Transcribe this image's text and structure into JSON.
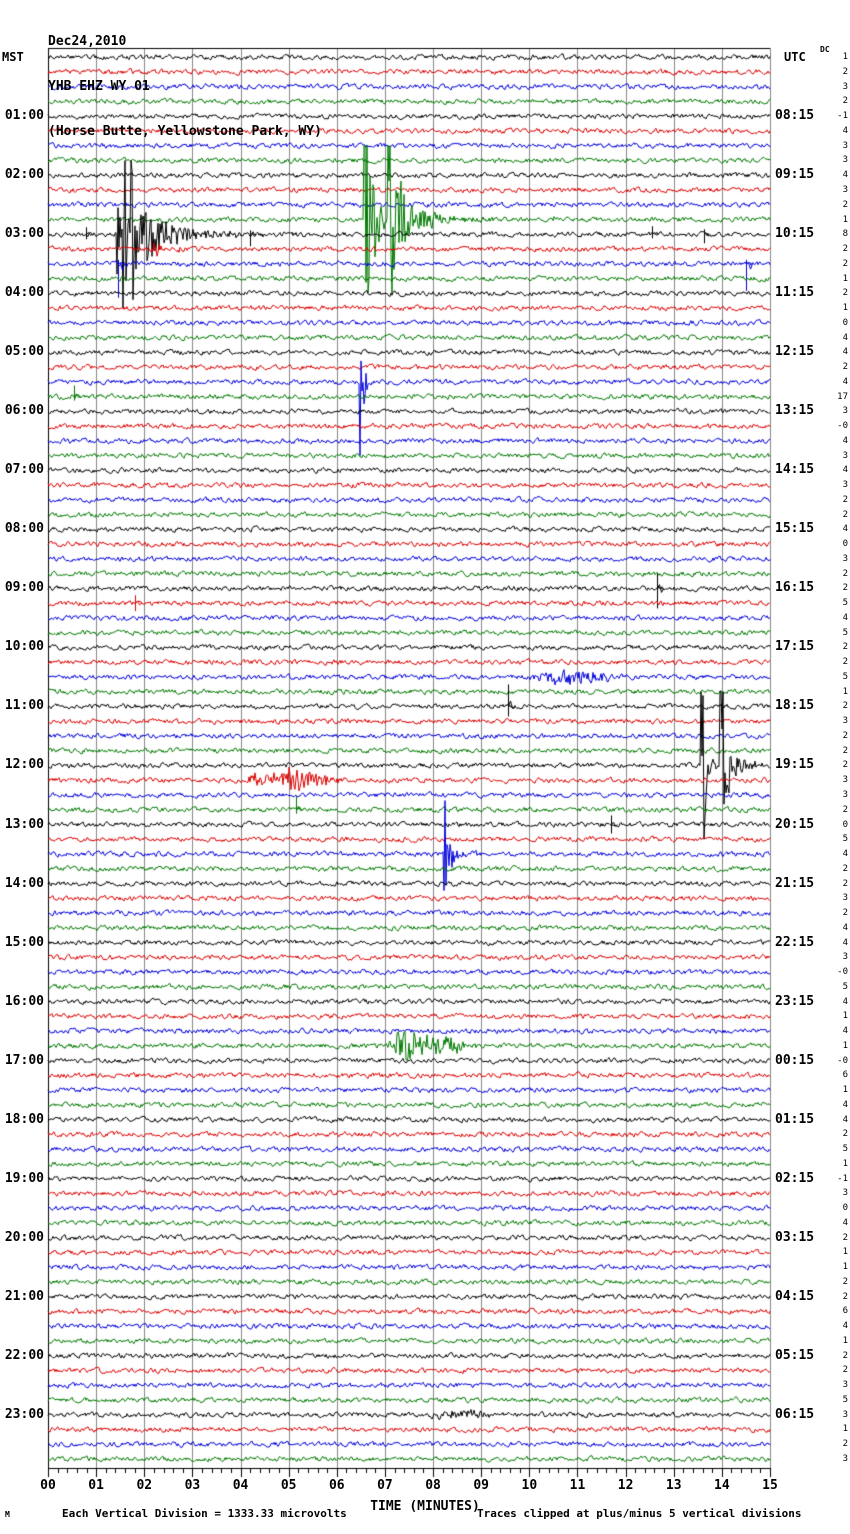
{
  "header": {
    "date": "Dec24,2010",
    "station": "YHB EHZ WY 01",
    "location": "(Horse Butte, Yellowstone Park, WY)"
  },
  "corners": {
    "left_tz": "MST",
    "right_tz": "UTC",
    "dc_label": "DC"
  },
  "footer": {
    "xlabel": "TIME (MINUTES)",
    "scale_note": "Each Vertical Division = 1333.33 microvolts",
    "clip_note": "Traces clipped at plus/minus 5 vertical divisions",
    "watermark": "M"
  },
  "colors": {
    "black": "#000000",
    "red": "#dd0000",
    "blue": "#0000dd",
    "green": "#007a00",
    "grid": "#888888",
    "frame": "#000000",
    "background": "#ffffff"
  },
  "chart_data": {
    "type": "line",
    "subtype": "helicorder-seismogram",
    "rows": 96,
    "minutes_per_row": 15,
    "trace_color_cycle": [
      "black",
      "red",
      "blue",
      "green"
    ],
    "x_tick_labels": [
      "00",
      "01",
      "02",
      "03",
      "04",
      "05",
      "06",
      "07",
      "08",
      "09",
      "10",
      "11",
      "12",
      "13",
      "14",
      "15"
    ],
    "mst_hour_labels": [
      "01:00",
      "02:00",
      "03:00",
      "04:00",
      "05:00",
      "06:00",
      "07:00",
      "08:00",
      "09:00",
      "10:00",
      "11:00",
      "12:00",
      "13:00",
      "14:00",
      "15:00",
      "16:00",
      "17:00",
      "18:00",
      "19:00",
      "20:00",
      "21:00",
      "22:00",
      "23:00"
    ],
    "utc_hour_labels": [
      "08:15",
      "09:15",
      "10:15",
      "11:15",
      "12:15",
      "13:15",
      "14:15",
      "15:15",
      "16:15",
      "17:15",
      "18:15",
      "19:15",
      "20:15",
      "21:15",
      "22:15",
      "23:15",
      "00:15",
      "01:15",
      "02:15",
      "03:15",
      "04:15",
      "05:15",
      "06:15"
    ],
    "hour_label_first_row_index": 4,
    "hour_label_row_step": 4,
    "clip_divisions": 5,
    "dc_offsets": [
      "1",
      "2",
      "3",
      "2",
      "-1",
      "4",
      "3",
      "3",
      "4",
      "3",
      "2",
      "1",
      "8",
      "2",
      "2",
      "1",
      "2",
      "1",
      "0",
      "4",
      "4",
      "2",
      "4",
      "17",
      "3",
      "-0",
      "4",
      "3",
      "4",
      "3",
      "2",
      "2",
      "4",
      "0",
      "3",
      "2",
      "2",
      "5",
      "4",
      "5",
      "2",
      "2",
      "5",
      "1",
      "2",
      "3",
      "2",
      "2",
      "2",
      "3",
      "3",
      "2",
      "0",
      "5",
      "4",
      "2",
      "2",
      "3",
      "2",
      "4",
      "4",
      "3",
      "-0",
      "5",
      "4",
      "1",
      "4",
      "1",
      "-0",
      "6",
      "1",
      "4",
      "4",
      "2",
      "5",
      "1",
      "-1",
      "3",
      "0",
      "4",
      "2",
      "1",
      "1",
      "2",
      "2",
      "6",
      "4",
      "1",
      "2",
      "2",
      "3",
      "5",
      "3",
      "1",
      "2",
      "3"
    ],
    "events": [
      {
        "type": "burst",
        "row": 12,
        "t": 1.42,
        "amp": 120,
        "tau": 0.04
      },
      {
        "type": "burst",
        "row": 12,
        "t": 1.55,
        "amp": 320,
        "tau": 0.05
      },
      {
        "type": "burst",
        "row": 12,
        "t": 1.72,
        "amp": 90,
        "tau": 0.18
      },
      {
        "type": "burst",
        "row": 12,
        "t": 2.0,
        "amp": 16,
        "tau": 0.9
      },
      {
        "type": "spike",
        "row": 12,
        "t": 0.78,
        "up": 7,
        "down": 5
      },
      {
        "type": "spike",
        "row": 12,
        "t": 4.2,
        "up": 4,
        "down": 12
      },
      {
        "type": "spike",
        "row": 12,
        "t": 12.55,
        "up": 8,
        "down": 4
      },
      {
        "type": "spike",
        "row": 12,
        "t": 13.62,
        "up": 5,
        "down": 9
      },
      {
        "type": "burst",
        "row": 11,
        "t": 6.55,
        "amp": 350,
        "tau": 0.12
      },
      {
        "type": "burst",
        "row": 11,
        "t": 7.05,
        "amp": 260,
        "tau": 0.1
      },
      {
        "type": "burst",
        "row": 11,
        "t": 7.25,
        "amp": 26,
        "tau": 0.55
      },
      {
        "type": "tremor",
        "row": 11,
        "t0": 10.35,
        "t1": 10.75,
        "amp": 4
      },
      {
        "type": "burst",
        "row": 13,
        "t": 2.2,
        "amp": 8,
        "tau": 0.35
      },
      {
        "type": "spike",
        "row": 14,
        "t": 1.45,
        "up": 4,
        "down": 34
      },
      {
        "type": "spike",
        "row": 14,
        "t": 14.5,
        "up": 4,
        "down": 27
      },
      {
        "type": "burst",
        "row": 22,
        "t": 6.48,
        "amp": 95,
        "tau": 0.06
      },
      {
        "type": "spike",
        "row": 23,
        "t": 0.55,
        "up": 11,
        "down": 4
      },
      {
        "type": "spike",
        "row": 36,
        "t": 12.65,
        "up": 15,
        "down": 20
      },
      {
        "type": "spike",
        "row": 37,
        "t": 1.8,
        "up": 8,
        "down": 8
      },
      {
        "type": "tremor",
        "row": 42,
        "t0": 10.0,
        "t1": 11.9,
        "amp": 6
      },
      {
        "type": "spike",
        "row": 44,
        "t": 9.55,
        "up": 22,
        "down": 10
      },
      {
        "type": "burst",
        "row": 48,
        "t": 13.55,
        "amp": 300,
        "tau": 0.07
      },
      {
        "type": "burst",
        "row": 48,
        "t": 13.95,
        "amp": 280,
        "tau": 0.07
      },
      {
        "type": "burst",
        "row": 48,
        "t": 14.1,
        "amp": 13,
        "tau": 0.45
      },
      {
        "type": "tremor",
        "row": 49,
        "t0": 4.0,
        "t1": 6.2,
        "amp": 6
      },
      {
        "type": "burst",
        "row": 49,
        "t": 5.0,
        "amp": 10,
        "tau": 0.3
      },
      {
        "type": "spike",
        "row": 51,
        "t": 5.15,
        "up": 14,
        "down": 4
      },
      {
        "type": "spike",
        "row": 52,
        "t": 11.7,
        "up": 9,
        "down": 9
      },
      {
        "type": "burst",
        "row": 54,
        "t": 8.22,
        "amp": 120,
        "tau": 0.05
      },
      {
        "type": "burst",
        "row": 54,
        "t": 8.3,
        "amp": 13,
        "tau": 0.25
      },
      {
        "type": "tremor",
        "row": 67,
        "t0": 7.0,
        "t1": 8.9,
        "amp": 8
      },
      {
        "type": "burst",
        "row": 67,
        "t": 7.25,
        "amp": 13,
        "tau": 0.3
      },
      {
        "type": "tremor",
        "row": 92,
        "t0": 7.8,
        "t1": 9.4,
        "amp": 4
      }
    ]
  }
}
